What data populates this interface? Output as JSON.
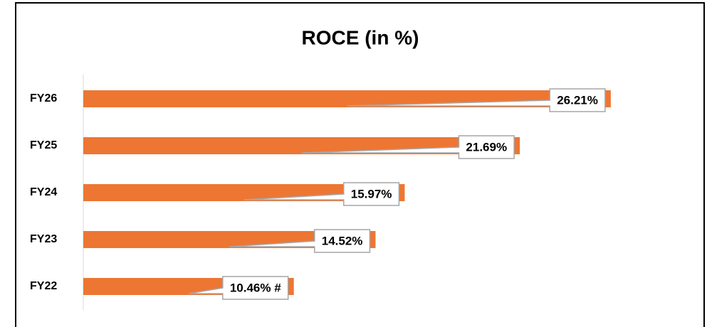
{
  "chart_data": {
    "type": "bar",
    "orientation": "horizontal",
    "title": "ROCE (in %)",
    "categories": [
      "FY26",
      "FY25",
      "FY24",
      "FY23",
      "FY22"
    ],
    "values": [
      26.21,
      21.69,
      15.97,
      14.52,
      10.46
    ],
    "value_labels": [
      "26.21%",
      "21.69%",
      "15.97%",
      "14.52%",
      "10.46% #"
    ],
    "color": "#ed7633",
    "xlim": [
      0,
      30
    ]
  }
}
